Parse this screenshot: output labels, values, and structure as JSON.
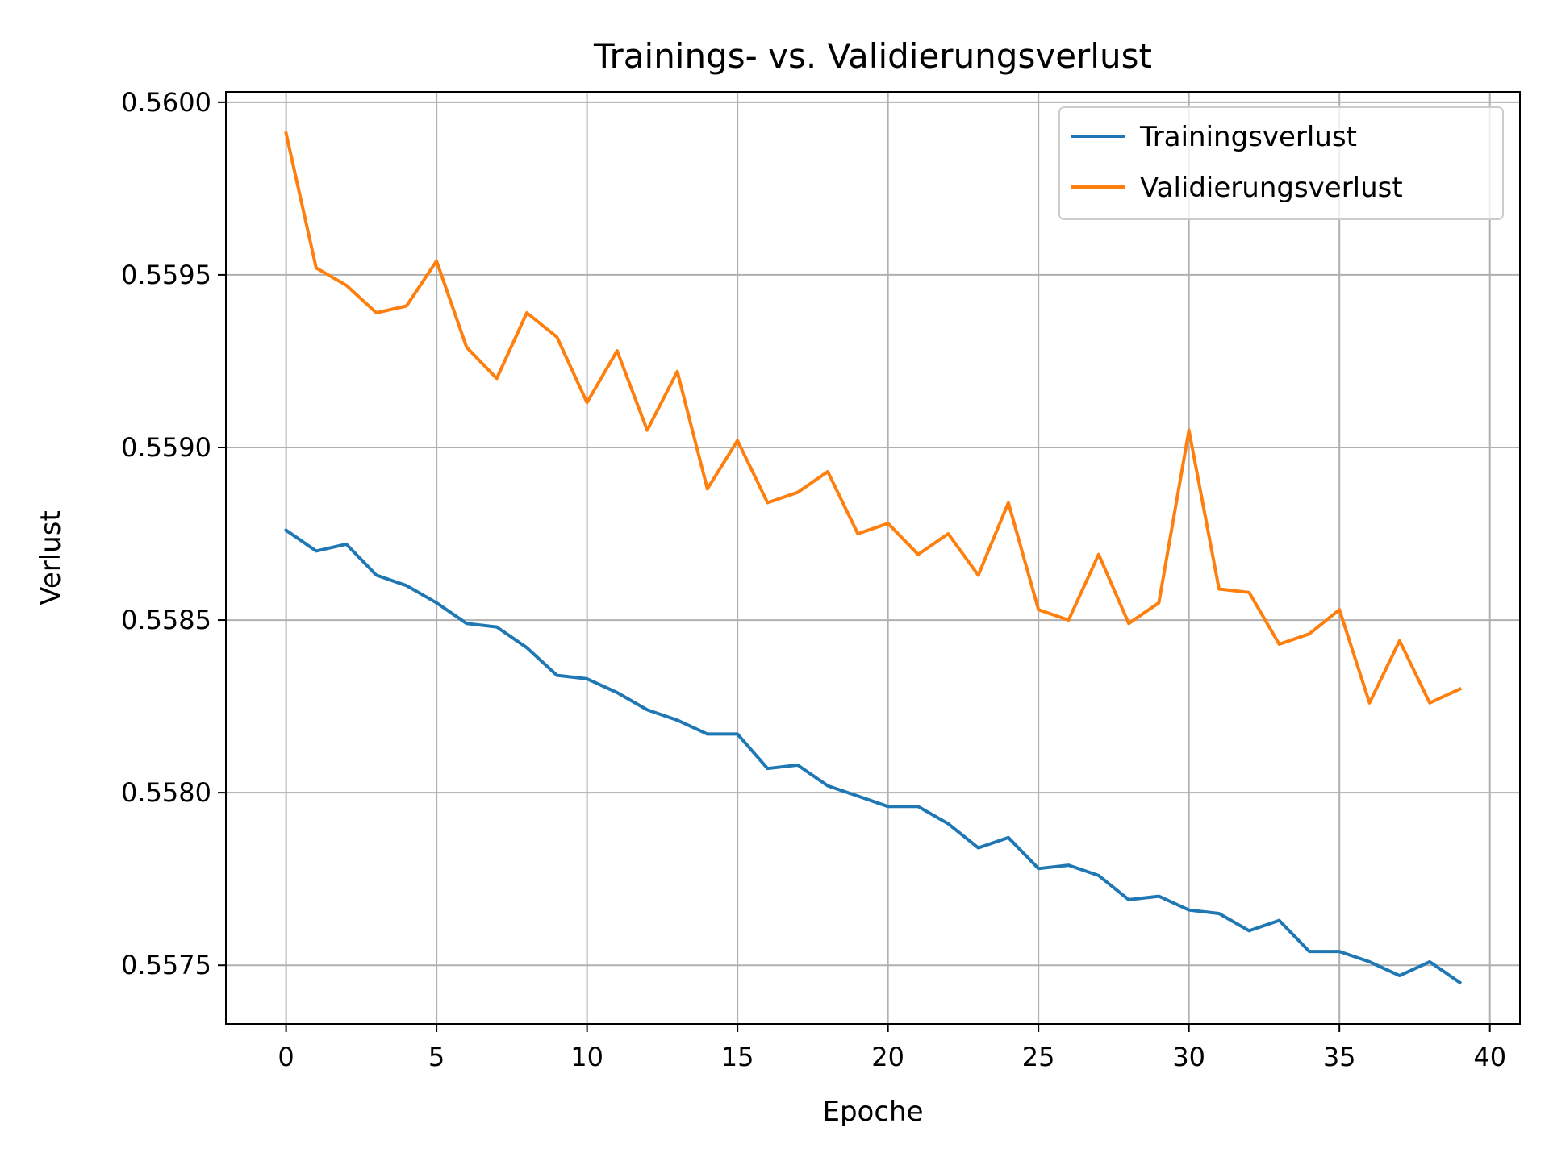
{
  "chart_data": {
    "type": "line",
    "title": "Trainings- vs. Validierungsverlust",
    "xlabel": "Epoche",
    "ylabel": "Verlust",
    "xlim": [
      -2,
      41
    ],
    "ylim": [
      0.55733,
      0.56003
    ],
    "xticks": [
      0,
      5,
      10,
      15,
      20,
      25,
      30,
      35,
      40
    ],
    "xtick_labels": [
      "0",
      "5",
      "10",
      "15",
      "20",
      "25",
      "30",
      "35",
      "40"
    ],
    "yticks": [
      0.5575,
      0.558,
      0.5585,
      0.559,
      0.5595,
      0.56
    ],
    "ytick_labels": [
      "0.5575",
      "0.5580",
      "0.5585",
      "0.5590",
      "0.5595",
      "0.5600"
    ],
    "grid": true,
    "legend_position": "top-right",
    "x": [
      0,
      1,
      2,
      3,
      4,
      5,
      6,
      7,
      8,
      9,
      10,
      11,
      12,
      13,
      14,
      15,
      16,
      17,
      18,
      19,
      20,
      21,
      22,
      23,
      24,
      25,
      26,
      27,
      28,
      29,
      30,
      31,
      32,
      33,
      34,
      35,
      36,
      37,
      38,
      39
    ],
    "series": [
      {
        "name": "Trainingsverlust",
        "color": "#1f77b4",
        "values": [
          0.55876,
          0.5587,
          0.55872,
          0.55863,
          0.5586,
          0.55855,
          0.55849,
          0.55848,
          0.55842,
          0.55834,
          0.55833,
          0.55829,
          0.55824,
          0.55821,
          0.55817,
          0.55817,
          0.55807,
          0.55808,
          0.55802,
          0.55799,
          0.55796,
          0.55796,
          0.55791,
          0.55784,
          0.55787,
          0.55778,
          0.55779,
          0.55776,
          0.55769,
          0.5577,
          0.55766,
          0.55765,
          0.5576,
          0.55763,
          0.55754,
          0.55754,
          0.55751,
          0.55747,
          0.55751,
          0.55745
        ]
      },
      {
        "name": "Validierungsverlust",
        "color": "#ff7f0e",
        "values": [
          0.55991,
          0.55952,
          0.55947,
          0.55939,
          0.55941,
          0.55954,
          0.55929,
          0.5592,
          0.55939,
          0.55932,
          0.55913,
          0.55928,
          0.55905,
          0.55922,
          0.55888,
          0.55902,
          0.55884,
          0.55887,
          0.55893,
          0.55875,
          0.55878,
          0.55869,
          0.55875,
          0.55863,
          0.55884,
          0.55853,
          0.5585,
          0.55869,
          0.55849,
          0.55855,
          0.55905,
          0.55859,
          0.55858,
          0.55843,
          0.55846,
          0.55853,
          0.55826,
          0.55844,
          0.55826,
          0.5583
        ]
      }
    ]
  }
}
